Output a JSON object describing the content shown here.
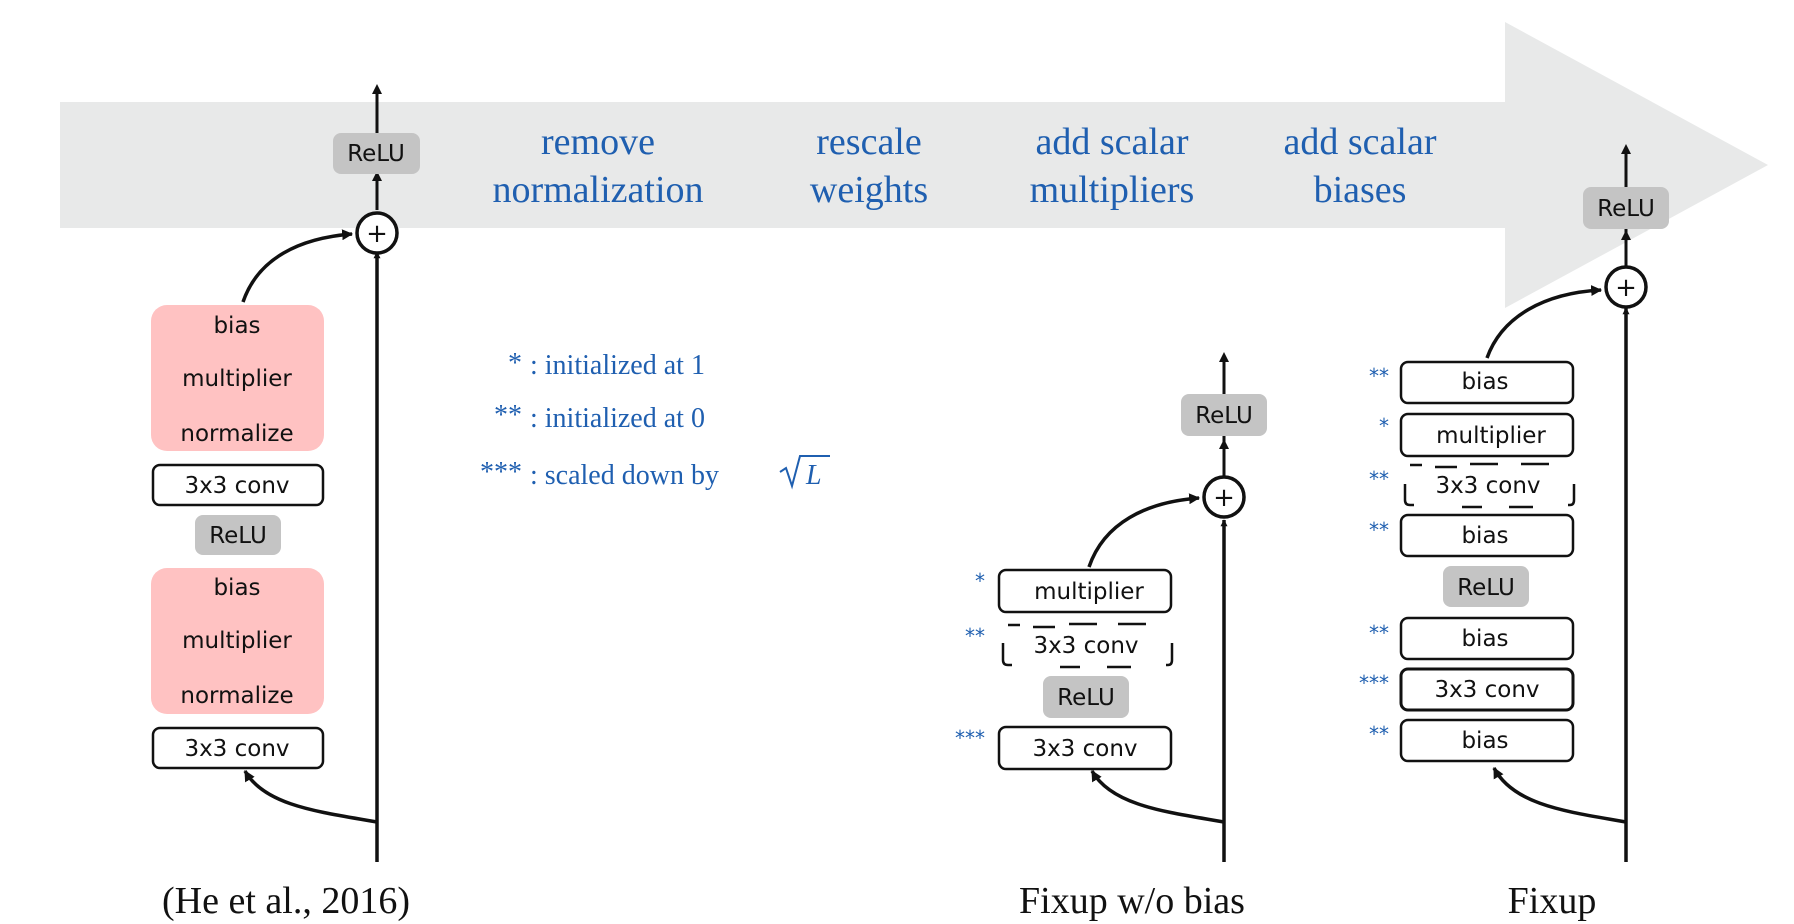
{
  "diagram": {
    "steps": [
      {
        "line1": "remove",
        "line2": "normalization"
      },
      {
        "line1": "rescale",
        "line2": "weights"
      },
      {
        "line1": "add scalar",
        "line2": "multipliers"
      },
      {
        "line1": "add scalar",
        "line2": "biases"
      }
    ],
    "legend": [
      {
        "stars": "*",
        "text": ": initialized at 1"
      },
      {
        "stars": "**",
        "text": ": initialized at 0"
      },
      {
        "stars": "***",
        "text": ": scaled down by",
        "math": "L"
      }
    ],
    "colors": {
      "arrow_band": "#e8e9e9",
      "normalization_block": "#ffc2c2",
      "relu_box": "#c4c4c4",
      "accent_text": "#1f5fb0"
    },
    "original_block": {
      "caption": "(He et al., 2016)",
      "relu": "ReLU",
      "upper_norm": [
        "bias",
        "multiplier",
        "normalize"
      ],
      "upper_conv": "3x3 conv",
      "middle_relu": "ReLU",
      "lower_norm": [
        "bias",
        "multiplier",
        "normalize"
      ],
      "lower_conv": "3x3 conv"
    },
    "fixup_no_bias": {
      "caption": "Fixup w/o bias",
      "relu": "ReLU",
      "multiplier": "multiplier",
      "multiplier_mark": "*",
      "conv_zero": "3x3 conv",
      "conv_zero_mark": "**",
      "middle_relu": "ReLU",
      "conv_scaled": "3x3 conv",
      "conv_scaled_mark": "***"
    },
    "fixup": {
      "caption": "Fixup",
      "relu": "ReLU",
      "bias_top": "bias",
      "bias_top_mark": "**",
      "multiplier": "multiplier",
      "multiplier_mark": "*",
      "conv_zero": "3x3 conv",
      "conv_zero_mark": "**",
      "bias_after_conv": "bias",
      "bias_after_conv_mark": "**",
      "middle_relu": "ReLU",
      "bias_mid": "bias",
      "bias_mid_mark": "**",
      "conv_scaled": "3x3 conv",
      "conv_scaled_mark": "***",
      "bias_bottom": "bias",
      "bias_bottom_mark": "**"
    }
  }
}
